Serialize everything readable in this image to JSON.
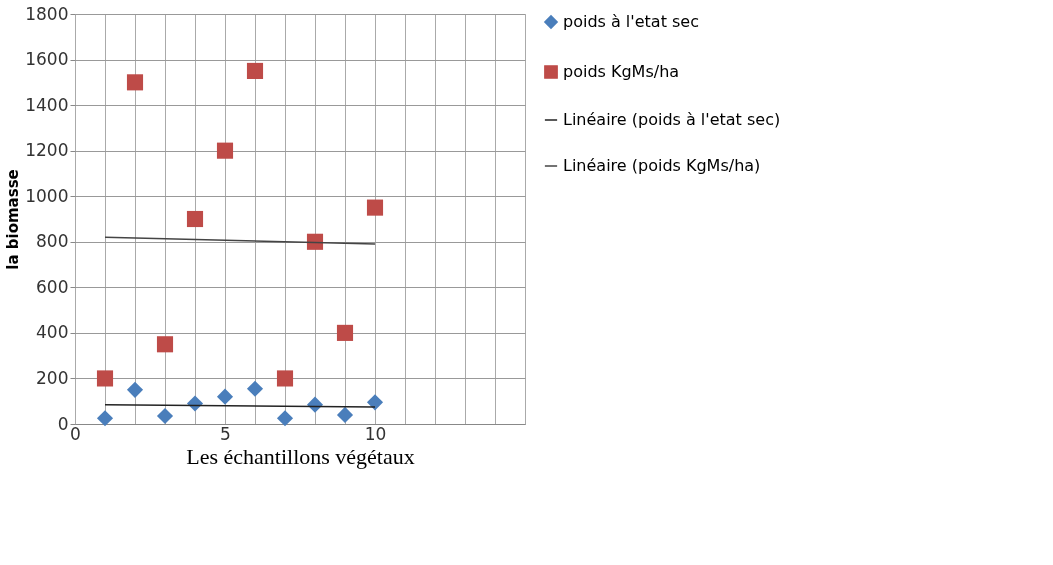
{
  "chart_data": {
    "type": "scatter",
    "xlabel": "Les échantillons végétaux",
    "ylabel": "la biomasse",
    "xlim": [
      0,
      15
    ],
    "ylim": [
      0,
      1800
    ],
    "xticks": [
      0,
      {
        "value": 1,
        "label": null
      },
      {
        "value": 2,
        "label": null
      },
      {
        "value": 3,
        "label": null
      },
      {
        "value": 4,
        "label": null
      },
      5,
      {
        "value": 6,
        "label": null
      },
      {
        "value": 7,
        "label": null
      },
      {
        "value": 8,
        "label": null
      },
      {
        "value": 9,
        "label": null
      },
      10,
      {
        "value": 11,
        "label": null
      },
      {
        "value": 12,
        "label": null
      },
      {
        "value": 13,
        "label": null
      },
      {
        "value": 14,
        "label": null
      },
      {
        "value": 15,
        "label": null
      }
    ],
    "yticks": [
      0,
      200,
      400,
      600,
      800,
      1000,
      1200,
      1400,
      1600,
      1800
    ],
    "grid": true,
    "legend": "right",
    "series": [
      {
        "name": "poids à l'etat sec",
        "marker": "diamond",
        "color": "#4a7ebb",
        "x": [
          1,
          2,
          3,
          4,
          5,
          6,
          7,
          8,
          9,
          10
        ],
        "values": [
          25,
          150,
          35,
          90,
          120,
          155,
          25,
          85,
          40,
          95
        ]
      },
      {
        "name": "poids KgMs/ha",
        "marker": "square",
        "color": "#be4b48",
        "x": [
          1,
          2,
          3,
          4,
          5,
          6,
          7,
          8,
          9,
          10
        ],
        "values": [
          200,
          1500,
          350,
          900,
          1200,
          1550,
          200,
          800,
          400,
          950
        ]
      },
      {
        "name": "Linéaire (poids à l'etat sec)",
        "type": "line",
        "marker": "none",
        "color": "#222222",
        "x": [
          1,
          10
        ],
        "values": [
          85,
          75
        ]
      },
      {
        "name": "Linéaire (poids KgMs/ha)",
        "type": "line",
        "marker": "none",
        "color": "#444444",
        "x": [
          1,
          10
        ],
        "values": [
          820,
          790
        ]
      }
    ]
  }
}
